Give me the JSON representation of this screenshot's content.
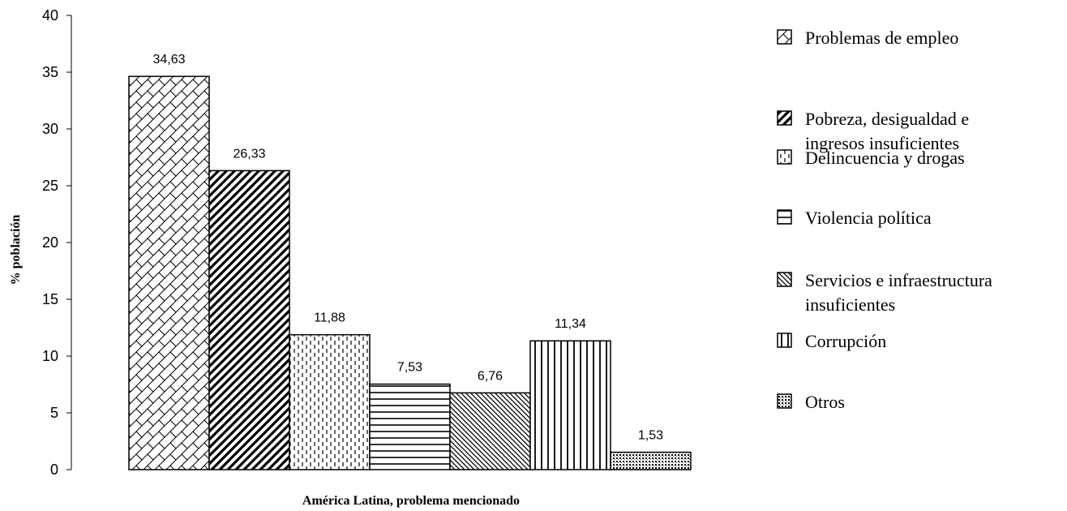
{
  "chart_data": {
    "type": "bar",
    "xlabel": "América Latina, problema mencionado",
    "ylabel": "% población",
    "ylim": [
      0,
      40
    ],
    "yticks": [
      0,
      5,
      10,
      15,
      20,
      25,
      30,
      35,
      40
    ],
    "grid": false,
    "legend_position": "right",
    "series": [
      {
        "name": "Problemas de empleo",
        "value": 34.63,
        "label": "34,63",
        "pattern": "crosshatch-diagonal"
      },
      {
        "name": "Pobreza, desigualdad e ingresos insuficientes",
        "value": 26.33,
        "label": "26,33",
        "pattern": "wide-diagonal-up"
      },
      {
        "name": "Delincuencia y drogas",
        "value": 11.88,
        "label": "11,88",
        "pattern": "dashed-vertical"
      },
      {
        "name": "Violencia política",
        "value": 7.53,
        "label": "7,53",
        "pattern": "horizontal"
      },
      {
        "name": "Servicios e infraestructura insuficientes",
        "value": 6.76,
        "label": "6,76",
        "pattern": "dark-diagonal-down"
      },
      {
        "name": "Corrupción",
        "value": 11.34,
        "label": "11,34",
        "pattern": "vertical"
      },
      {
        "name": "Otros",
        "value": 1.53,
        "label": "1,53",
        "pattern": "dots"
      }
    ],
    "legend_lines": [
      [
        "Problemas de empleo"
      ],
      [
        "Pobreza, desigualdad e",
        "ingresos insuficientes"
      ],
      [
        "Delincuencia y drogas"
      ],
      [
        "Violencia política"
      ],
      [
        "Servicios e infraestructura",
        "insuficientes"
      ],
      [
        "Corrupción"
      ],
      [
        "Otros"
      ]
    ]
  }
}
